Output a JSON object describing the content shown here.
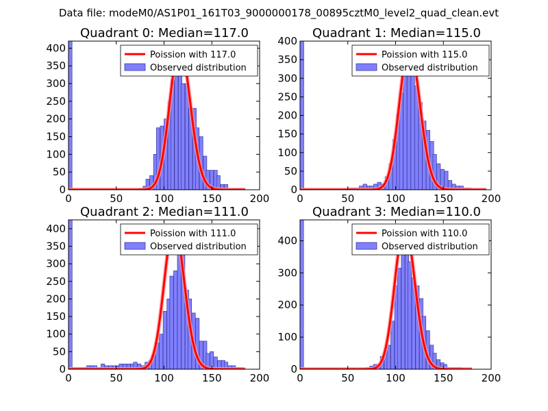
{
  "figure_title": "Data file: modeM0/AS1P01_161T03_9000000178_00895cztM0_level2_quad_clean.evt",
  "colors": {
    "hist_fill": "#8080ff",
    "hist_edge": "#3a3a9a",
    "line": "#ff0000",
    "line_light": "#ff9a9a"
  },
  "chart_data": [
    {
      "type": "bar",
      "title": "Quadrant 0: Median=117.0",
      "xlim": [
        0,
        200
      ],
      "ylim": [
        0,
        420
      ],
      "xticks": [
        0,
        50,
        100,
        150,
        200
      ],
      "yticks": [
        0,
        50,
        100,
        150,
        200,
        250,
        300,
        350,
        400
      ],
      "legend": {
        "location": "top-right",
        "line_label": "Poission with 117.0",
        "hist_label": "Observed distribution"
      },
      "mu": 117.0,
      "poisson_range": [
        0,
        185
      ],
      "bin_width": 3.7,
      "bins": [
        [
          0,
          420
        ],
        [
          74,
          3
        ],
        [
          78,
          10
        ],
        [
          81,
          30
        ],
        [
          85,
          40
        ],
        [
          89,
          100
        ],
        [
          92,
          175
        ],
        [
          96,
          180
        ],
        [
          100,
          200
        ],
        [
          104,
          250
        ],
        [
          107,
          310
        ],
        [
          111,
          335
        ],
        [
          115,
          370
        ],
        [
          118,
          300
        ],
        [
          122,
          300
        ],
        [
          126,
          230
        ],
        [
          130,
          230
        ],
        [
          133,
          175
        ],
        [
          137,
          150
        ],
        [
          141,
          95
        ],
        [
          144,
          55
        ],
        [
          148,
          55
        ],
        [
          152,
          55
        ],
        [
          155,
          40
        ],
        [
          159,
          15
        ],
        [
          163,
          15
        ],
        [
          166,
          3
        ],
        [
          170,
          3
        ],
        [
          174,
          3
        ],
        [
          178,
          3
        ]
      ]
    },
    {
      "type": "bar",
      "title": "Quadrant 1: Median=115.0",
      "xlim": [
        0,
        200
      ],
      "ylim": [
        0,
        400
      ],
      "xticks": [
        0,
        50,
        100,
        150,
        200
      ],
      "yticks": [
        0,
        50,
        100,
        150,
        200,
        250,
        300,
        350,
        400
      ],
      "legend": {
        "location": "top-right",
        "line_label": "Poission with 115.0",
        "hist_label": "Observed distribution"
      },
      "mu": 115.0,
      "poisson_range": [
        0,
        195
      ],
      "bin_width": 3.9,
      "bins": [
        [
          0,
          400
        ],
        [
          50,
          5
        ],
        [
          54,
          5
        ],
        [
          58,
          5
        ],
        [
          62,
          10
        ],
        [
          66,
          15
        ],
        [
          70,
          10
        ],
        [
          73,
          10
        ],
        [
          77,
          15
        ],
        [
          81,
          20
        ],
        [
          85,
          15
        ],
        [
          89,
          35
        ],
        [
          93,
          70
        ],
        [
          97,
          135
        ],
        [
          101,
          205
        ],
        [
          104,
          260
        ],
        [
          108,
          315
        ],
        [
          112,
          340
        ],
        [
          116,
          310
        ],
        [
          120,
          280
        ],
        [
          124,
          235
        ],
        [
          128,
          185
        ],
        [
          132,
          160
        ],
        [
          136,
          130
        ],
        [
          139,
          95
        ],
        [
          143,
          70
        ],
        [
          147,
          55
        ],
        [
          151,
          50
        ],
        [
          155,
          25
        ],
        [
          159,
          15
        ],
        [
          163,
          10
        ],
        [
          167,
          10
        ],
        [
          171,
          5
        ],
        [
          175,
          5
        ]
      ]
    },
    {
      "type": "bar",
      "title": "Quadrant 2: Median=111.0",
      "xlim": [
        0,
        200
      ],
      "ylim": [
        0,
        425
      ],
      "xticks": [
        0,
        50,
        100,
        150,
        200
      ],
      "yticks": [
        0,
        50,
        100,
        150,
        200,
        250,
        300,
        350,
        400
      ],
      "legend": {
        "location": "top-right",
        "line_label": "Poission with 111.0",
        "hist_label": "Observed distribution"
      },
      "mu": 111.0,
      "poisson_range": [
        0,
        185
      ],
      "bin_width": 3.8,
      "bins": [
        [
          0,
          425
        ],
        [
          4,
          5
        ],
        [
          8,
          5
        ],
        [
          11,
          5
        ],
        [
          15,
          5
        ],
        [
          19,
          10
        ],
        [
          23,
          10
        ],
        [
          26,
          10
        ],
        [
          30,
          5
        ],
        [
          34,
          15
        ],
        [
          38,
          10
        ],
        [
          42,
          10
        ],
        [
          46,
          10
        ],
        [
          49,
          10
        ],
        [
          53,
          15
        ],
        [
          57,
          15
        ],
        [
          61,
          15
        ],
        [
          65,
          15
        ],
        [
          68,
          20
        ],
        [
          72,
          15
        ],
        [
          76,
          10
        ],
        [
          80,
          20
        ],
        [
          84,
          25
        ],
        [
          87,
          40
        ],
        [
          91,
          75
        ],
        [
          95,
          100
        ],
        [
          99,
          165
        ],
        [
          103,
          200
        ],
        [
          106,
          265
        ],
        [
          110,
          280
        ],
        [
          114,
          365
        ],
        [
          118,
          355
        ],
        [
          122,
          225
        ],
        [
          125,
          200
        ],
        [
          129,
          160
        ],
        [
          133,
          145
        ],
        [
          137,
          80
        ],
        [
          141,
          80
        ],
        [
          144,
          45
        ],
        [
          148,
          50
        ],
        [
          152,
          35
        ],
        [
          156,
          25
        ],
        [
          160,
          25
        ],
        [
          163,
          20
        ],
        [
          167,
          10
        ],
        [
          171,
          10
        ],
        [
          175,
          5
        ],
        [
          179,
          5
        ]
      ]
    },
    {
      "type": "bar",
      "title": "Quadrant 3: Median=110.0",
      "xlim": [
        0,
        200
      ],
      "ylim": [
        0,
        465
      ],
      "xticks": [
        0,
        50,
        100,
        150,
        200
      ],
      "yticks": [
        0,
        100,
        200,
        300,
        400
      ],
      "legend": {
        "location": "top-right",
        "line_label": "Poission with 110.0",
        "hist_label": "Observed distribution"
      },
      "mu": 110.0,
      "poisson_range": [
        0,
        180
      ],
      "bin_width": 3.7,
      "bins": [
        [
          0,
          465
        ],
        [
          69,
          5
        ],
        [
          73,
          10
        ],
        [
          77,
          15
        ],
        [
          80,
          15
        ],
        [
          84,
          40
        ],
        [
          88,
          55
        ],
        [
          91,
          75
        ],
        [
          95,
          150
        ],
        [
          99,
          260
        ],
        [
          102,
          315
        ],
        [
          106,
          380
        ],
        [
          110,
          380
        ],
        [
          113,
          335
        ],
        [
          117,
          285
        ],
        [
          121,
          260
        ],
        [
          125,
          220
        ],
        [
          128,
          165
        ],
        [
          132,
          120
        ],
        [
          136,
          75
        ],
        [
          139,
          50
        ],
        [
          143,
          30
        ],
        [
          147,
          20
        ],
        [
          150,
          15
        ],
        [
          154,
          5
        ],
        [
          158,
          5
        ],
        [
          162,
          5
        ],
        [
          165,
          5
        ]
      ]
    }
  ]
}
